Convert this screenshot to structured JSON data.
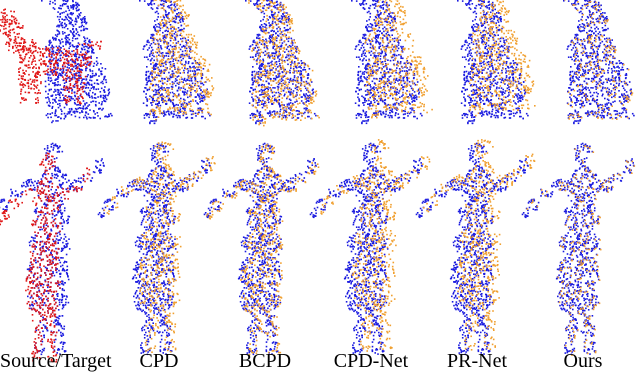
{
  "figure": {
    "columns": [
      {
        "label": "Source/Target",
        "overlay": "red"
      },
      {
        "label": "CPD",
        "overlay": "orange"
      },
      {
        "label": "BCPD",
        "overlay": "orange"
      },
      {
        "label": "CPD-Net",
        "overlay": "orange"
      },
      {
        "label": "PR-Net",
        "overlay": "orange"
      },
      {
        "label": "Ours",
        "overlay": "orange"
      }
    ],
    "rows": [
      "dog",
      "human"
    ],
    "colors": {
      "target": "#1a1adf",
      "source": "#e01818",
      "result": "#f0a030"
    }
  }
}
